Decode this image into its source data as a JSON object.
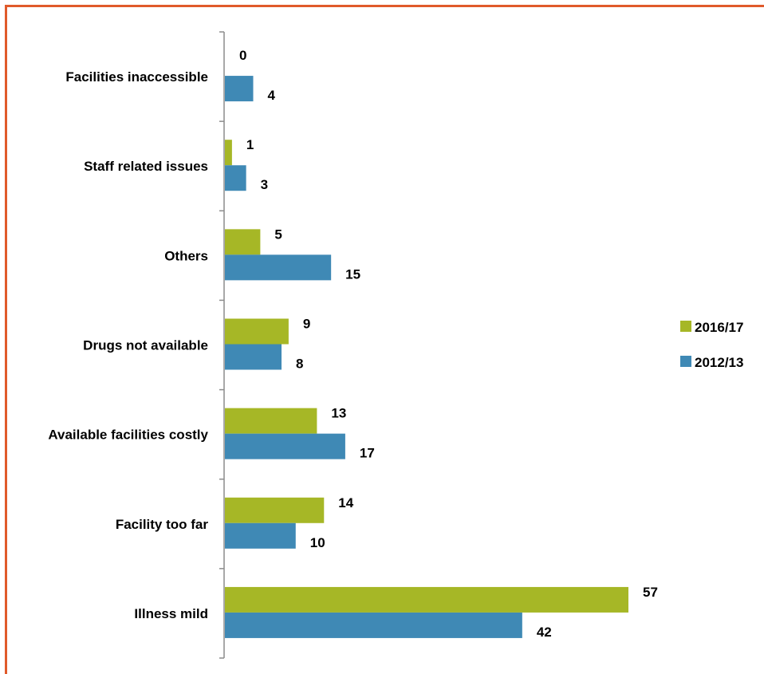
{
  "chart_data": {
    "type": "bar",
    "orientation": "horizontal",
    "categories": [
      "Facilities inaccessible",
      "Staff related issues",
      "Others",
      "Drugs not available",
      "Available facilities costly",
      "Facility too far",
      "Illness mild"
    ],
    "series": [
      {
        "name": "2016/17",
        "values": [
          0,
          1,
          5,
          9,
          13,
          14,
          57
        ],
        "color": "#a6b726"
      },
      {
        "name": "2012/13",
        "values": [
          4,
          3,
          15,
          8,
          17,
          10,
          42
        ],
        "color": "#3f89b5"
      }
    ],
    "xlim": [
      0,
      62
    ],
    "grid": false,
    "legend_position": "right",
    "frame_color": "#e05a2b"
  }
}
